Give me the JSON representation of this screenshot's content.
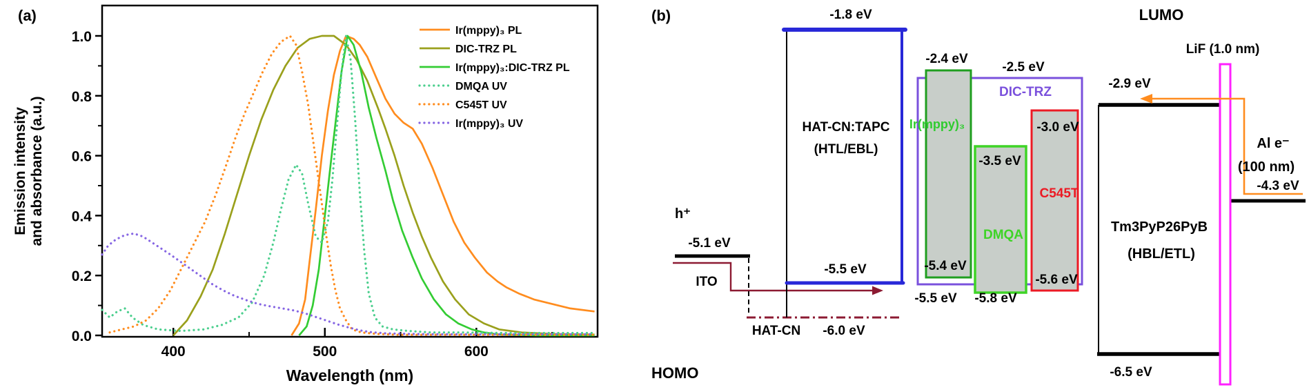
{
  "figure": {
    "panel_a_label": "(a)",
    "panel_b_label": "(b)"
  },
  "chart_data": {
    "type": "line",
    "title": "",
    "xlabel": "Wavelength (nm)",
    "ylabel_line1": "Emission intensity",
    "ylabel_line2": "and absorbance (a.u.)",
    "xlim": [
      353,
      680
    ],
    "ylim": [
      0.0,
      1.1
    ],
    "x_ticks": [
      400,
      500,
      600
    ],
    "x_minor_ticks": [
      450,
      550,
      650
    ],
    "y_ticks": [
      1.0,
      0.8,
      0.6,
      0.4,
      0.2,
      0.0
    ],
    "y_minor_ticks": [
      0.9,
      0.7,
      0.5,
      0.3,
      0.1
    ],
    "grid": false,
    "legend_position": "top-right",
    "series": [
      {
        "name": "Ir(mppy)₃ PL",
        "color": "#FF8C1E",
        "style": "solid",
        "points": [
          [
            478,
            0
          ],
          [
            483,
            0.04
          ],
          [
            487,
            0.12
          ],
          [
            490,
            0.25
          ],
          [
            494,
            0.42
          ],
          [
            498,
            0.6
          ],
          [
            502,
            0.75
          ],
          [
            506,
            0.87
          ],
          [
            510,
            0.95
          ],
          [
            514,
            1.0
          ],
          [
            519,
            0.99
          ],
          [
            523,
            0.97
          ],
          [
            528,
            0.93
          ],
          [
            534,
            0.86
          ],
          [
            540,
            0.79
          ],
          [
            546,
            0.74
          ],
          [
            552,
            0.71
          ],
          [
            558,
            0.69
          ],
          [
            564,
            0.64
          ],
          [
            571,
            0.56
          ],
          [
            578,
            0.47
          ],
          [
            585,
            0.38
          ],
          [
            592,
            0.31
          ],
          [
            599,
            0.26
          ],
          [
            607,
            0.21
          ],
          [
            614,
            0.18
          ],
          [
            620,
            0.16
          ],
          [
            628,
            0.14
          ],
          [
            638,
            0.12
          ],
          [
            650,
            0.105
          ],
          [
            662,
            0.09
          ],
          [
            678,
            0.08
          ]
        ]
      },
      {
        "name": "DIC-TRZ PL",
        "color": "#9AA01C",
        "style": "solid",
        "points": [
          [
            400,
            0
          ],
          [
            409,
            0.05
          ],
          [
            418,
            0.13
          ],
          [
            426,
            0.22
          ],
          [
            434,
            0.34
          ],
          [
            442,
            0.47
          ],
          [
            450,
            0.6
          ],
          [
            458,
            0.72
          ],
          [
            466,
            0.82
          ],
          [
            474,
            0.9
          ],
          [
            482,
            0.96
          ],
          [
            490,
            0.99
          ],
          [
            498,
            1.0
          ],
          [
            506,
            1.0
          ],
          [
            514,
            0.97
          ],
          [
            521,
            0.92
          ],
          [
            528,
            0.85
          ],
          [
            535,
            0.76
          ],
          [
            540,
            0.69
          ],
          [
            546,
            0.6
          ],
          [
            552,
            0.5
          ],
          [
            558,
            0.41
          ],
          [
            564,
            0.33
          ],
          [
            570,
            0.26
          ],
          [
            578,
            0.18
          ],
          [
            586,
            0.12
          ],
          [
            595,
            0.07
          ],
          [
            605,
            0.04
          ],
          [
            615,
            0.02
          ],
          [
            630,
            0.01
          ],
          [
            650,
            0.005
          ],
          [
            678,
            0.003
          ]
        ]
      },
      {
        "name": "Ir(mppy)₃:DIC-TRZ PL",
        "color": "#33CC33",
        "style": "solid",
        "points": [
          [
            483,
            0
          ],
          [
            488,
            0.03
          ],
          [
            492,
            0.1
          ],
          [
            496,
            0.22
          ],
          [
            500,
            0.4
          ],
          [
            504,
            0.58
          ],
          [
            508,
            0.75
          ],
          [
            511,
            0.88
          ],
          [
            515,
            1.0
          ],
          [
            519,
            0.97
          ],
          [
            524,
            0.88
          ],
          [
            529,
            0.76
          ],
          [
            534,
            0.66
          ],
          [
            540,
            0.55
          ],
          [
            545,
            0.45
          ],
          [
            551,
            0.35
          ],
          [
            558,
            0.26
          ],
          [
            564,
            0.19
          ],
          [
            572,
            0.12
          ],
          [
            580,
            0.07
          ],
          [
            588,
            0.04
          ],
          [
            597,
            0.02
          ],
          [
            605,
            0.01
          ],
          [
            615,
            0.003
          ],
          [
            640,
            0
          ],
          [
            678,
            0
          ]
        ]
      },
      {
        "name": "DMQA UV",
        "color": "#4CCF8E",
        "style": "dotted",
        "points": [
          [
            353,
            0.085
          ],
          [
            358,
            0.06
          ],
          [
            363,
            0.08
          ],
          [
            368,
            0.09
          ],
          [
            373,
            0.06
          ],
          [
            380,
            0.035
          ],
          [
            390,
            0.02
          ],
          [
            405,
            0.015
          ],
          [
            420,
            0.02
          ],
          [
            432,
            0.035
          ],
          [
            443,
            0.06
          ],
          [
            452,
            0.11
          ],
          [
            460,
            0.2
          ],
          [
            466,
            0.31
          ],
          [
            471,
            0.42
          ],
          [
            476,
            0.52
          ],
          [
            481,
            0.57
          ],
          [
            485,
            0.54
          ],
          [
            489,
            0.44
          ],
          [
            494,
            0.33
          ],
          [
            498,
            0.31
          ],
          [
            502,
            0.38
          ],
          [
            505,
            0.52
          ],
          [
            508,
            0.7
          ],
          [
            511,
            0.88
          ],
          [
            514,
            1.0
          ],
          [
            517,
            0.92
          ],
          [
            520,
            0.72
          ],
          [
            523,
            0.48
          ],
          [
            526,
            0.28
          ],
          [
            529,
            0.14
          ],
          [
            533,
            0.06
          ],
          [
            538,
            0.03
          ],
          [
            545,
            0.02
          ],
          [
            555,
            0.015
          ],
          [
            570,
            0.01
          ],
          [
            590,
            0.01
          ],
          [
            620,
            0.008
          ],
          [
            678,
            0.008
          ]
        ]
      },
      {
        "name": "C545T UV",
        "color": "#FF8C1E",
        "style": "dotted",
        "points": [
          [
            358,
            0.01
          ],
          [
            366,
            0.02
          ],
          [
            374,
            0.03
          ],
          [
            382,
            0.05
          ],
          [
            390,
            0.09
          ],
          [
            398,
            0.15
          ],
          [
            406,
            0.23
          ],
          [
            414,
            0.31
          ],
          [
            421,
            0.38
          ],
          [
            428,
            0.47
          ],
          [
            435,
            0.57
          ],
          [
            441,
            0.66
          ],
          [
            447,
            0.74
          ],
          [
            453,
            0.81
          ],
          [
            459,
            0.88
          ],
          [
            465,
            0.94
          ],
          [
            471,
            0.98
          ],
          [
            477,
            1.0
          ],
          [
            481,
            0.97
          ],
          [
            485,
            0.88
          ],
          [
            489,
            0.77
          ],
          [
            492,
            0.66
          ],
          [
            495,
            0.55
          ],
          [
            498,
            0.44
          ],
          [
            501,
            0.33
          ],
          [
            504,
            0.23
          ],
          [
            507,
            0.15
          ],
          [
            510,
            0.09
          ],
          [
            514,
            0.05
          ],
          [
            518,
            0.02
          ],
          [
            524,
            0.01
          ],
          [
            534,
            0.005
          ],
          [
            548,
            0.002
          ],
          [
            678,
            0.002
          ]
        ]
      },
      {
        "name": "Ir(mppy)₃ UV",
        "color": "#8666E3",
        "style": "dotted",
        "points": [
          [
            353,
            0.27
          ],
          [
            357,
            0.3
          ],
          [
            362,
            0.32
          ],
          [
            368,
            0.335
          ],
          [
            374,
            0.34
          ],
          [
            380,
            0.33
          ],
          [
            386,
            0.31
          ],
          [
            392,
            0.29
          ],
          [
            398,
            0.27
          ],
          [
            405,
            0.245
          ],
          [
            412,
            0.22
          ],
          [
            419,
            0.195
          ],
          [
            426,
            0.17
          ],
          [
            433,
            0.15
          ],
          [
            440,
            0.133
          ],
          [
            448,
            0.118
          ],
          [
            456,
            0.105
          ],
          [
            464,
            0.097
          ],
          [
            472,
            0.09
          ],
          [
            480,
            0.083
          ],
          [
            488,
            0.072
          ],
          [
            495,
            0.06
          ],
          [
            502,
            0.048
          ],
          [
            509,
            0.036
          ],
          [
            516,
            0.026
          ],
          [
            523,
            0.017
          ],
          [
            530,
            0.011
          ],
          [
            540,
            0.007
          ],
          [
            555,
            0.005
          ],
          [
            575,
            0.004
          ],
          [
            600,
            0.004
          ],
          [
            678,
            0.004
          ]
        ]
      }
    ]
  },
  "panel_b": {
    "labels": {
      "lumo": "LUMO",
      "homo": "HOMO",
      "h_plus": "h⁺",
      "e_51": "-5.1 eV",
      "ito": "ITO",
      "hatcn": "HAT-CN",
      "e_60": "-6.0 eV",
      "e_18": "-1.8 eV",
      "e_55a": "-5.5 eV",
      "hatcn_tapc": "HAT-CN:TAPC",
      "htl_ebl": "(HTL/EBL)",
      "e_24": "-2.4 eV",
      "e_25": "-2.5 eV",
      "dictrz": "DIC-TRZ",
      "irmppy": "Ir(mppy)₃",
      "e_54": "-5.4 eV",
      "e_55b": "-5.5 eV",
      "e_35": "-3.5 eV",
      "dmqa": "DMQA",
      "e_58": "-5.8 eV",
      "e_30": "-3.0 eV",
      "c545t": "C545T",
      "e_56": "-5.6 eV",
      "e_29": "-2.9 eV",
      "tm": "Tm3PyP26PyB",
      "hbl_etl": "(HBL/ETL)",
      "e_65": "-6.5 eV",
      "lif": "LiF (1.0 nm)",
      "al_e": "Al  e⁻",
      "al_nm": "(100 nm)",
      "e_43": "-4.3 eV"
    },
    "colors": {
      "blue_level": "#2828D8",
      "wine_arrow": "#8C1A32",
      "dictrz_purple": "#7A50DC",
      "ir_border": "#1F9E1F",
      "ir_text": "#2FCB2F",
      "dmqa_green": "#3ED426",
      "c545t_red": "#EC1A24",
      "lif_magenta": "#FF20FF",
      "electron_orange": "#FF8C1E",
      "box_fill_grey": "#C8CEC9"
    }
  }
}
